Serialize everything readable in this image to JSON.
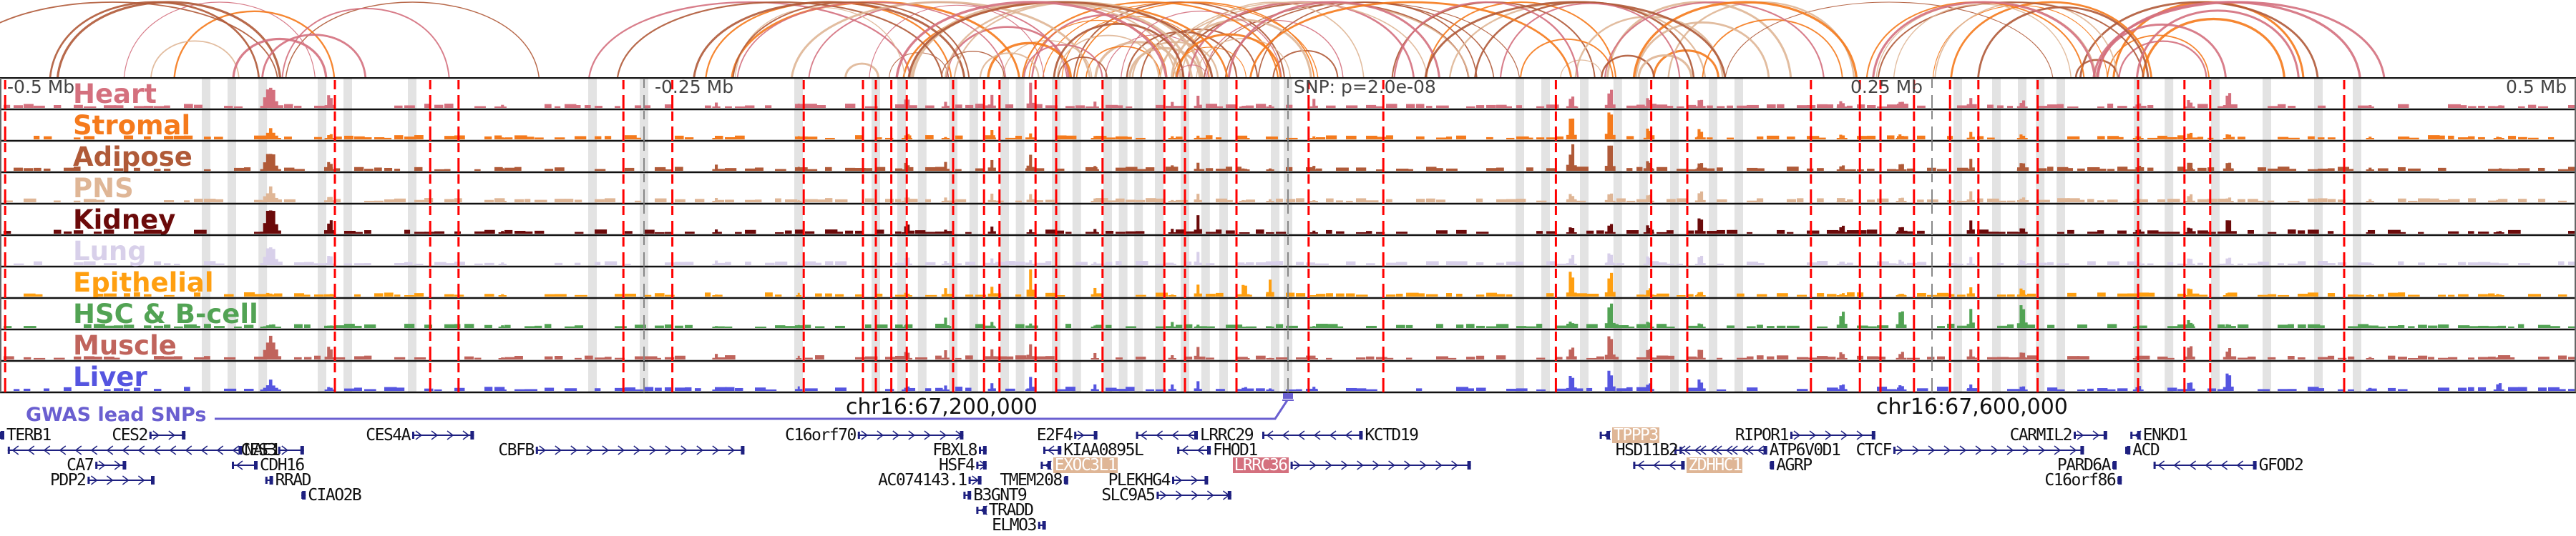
{
  "chart_data": {
    "type": "area",
    "title": "",
    "xlabel": "",
    "ylabel": "",
    "x_range_mb": [
      -0.5,
      0.5
    ],
    "axis_ticks": [
      {
        "pos": -0.5,
        "label": "-0.5 Mb"
      },
      {
        "pos": -0.25,
        "label": "-0.25 Mb"
      },
      {
        "pos": 0.25,
        "label": "0.25 Mb"
      },
      {
        "pos": 0.5,
        "label": "0.5 Mb"
      }
    ],
    "snp_label": "SNP: p=2.0e-08",
    "coordinate_labels": [
      {
        "pos": -0.1,
        "label": "chr16:67,200,000"
      },
      {
        "pos": 0.3,
        "label": "chr16:67,600,000"
      }
    ],
    "gwas_track_label": "GWAS lead SNPs",
    "gwas_snp_pos": 0.0,
    "tracks": [
      {
        "name": "Heart",
        "color": "#d4707e"
      },
      {
        "name": "Stromal",
        "color": "#f57a1c"
      },
      {
        "name": "Adipose",
        "color": "#b05a38"
      },
      {
        "name": "PNS",
        "color": "#dfb696"
      },
      {
        "name": "Kidney",
        "color": "#6b0a0a"
      },
      {
        "name": "Lung",
        "color": "#d8d0ea"
      },
      {
        "name": "Epithelial",
        "color": "#ff9f10"
      },
      {
        "name": "HSC & B-cell",
        "color": "#52a354"
      },
      {
        "name": "Muscle",
        "color": "#c0645c"
      },
      {
        "name": "Liver",
        "color": "#5555e0"
      }
    ],
    "peaks": [
      {
        "pos": -0.395,
        "w": 0.008,
        "h": [
          0.9,
          0.35,
          0.7,
          0.55,
          0.95,
          0.7,
          0.15,
          0.15,
          0.85,
          0.35
        ]
      },
      {
        "pos": -0.372,
        "w": 0.004,
        "h": [
          0.55,
          0.25,
          0.4,
          0.3,
          0.55,
          0.4,
          0.1,
          0.15,
          0.5,
          0.2
        ]
      },
      {
        "pos": -0.305,
        "w": 0.003,
        "h": [
          0.1,
          0.08,
          0.1,
          0.1,
          0.1,
          0.1,
          0.1,
          0.1,
          0.1,
          0.1
        ]
      },
      {
        "pos": -0.222,
        "w": 0.003,
        "h": [
          0.2,
          0.1,
          0.2,
          0.15,
          0.15,
          0.15,
          0.1,
          0.1,
          0.2,
          0.1
        ]
      },
      {
        "pos": -0.19,
        "w": 0.002,
        "h": [
          0.15,
          0.1,
          0.15,
          0.1,
          0.1,
          0.1,
          0.15,
          0.1,
          0.15,
          0.15
        ]
      },
      {
        "pos": -0.148,
        "w": 0.004,
        "h": [
          0.35,
          0.2,
          0.3,
          0.2,
          0.35,
          0.3,
          0.15,
          0.15,
          0.3,
          0.2
        ]
      },
      {
        "pos": -0.133,
        "w": 0.003,
        "h": [
          0.3,
          0.1,
          0.3,
          0.2,
          0.2,
          0.2,
          0.3,
          0.35,
          0.3,
          0.2
        ]
      },
      {
        "pos": -0.115,
        "w": 0.003,
        "h": [
          0.4,
          0.3,
          0.45,
          0.35,
          0.3,
          0.25,
          0.4,
          0.25,
          0.35,
          0.3
        ]
      },
      {
        "pos": -0.1,
        "w": 0.003,
        "h": [
          0.85,
          0.3,
          0.65,
          0.35,
          0.2,
          0.2,
          0.85,
          0.15,
          0.55,
          0.5
        ]
      },
      {
        "pos": -0.075,
        "w": 0.003,
        "h": [
          0.2,
          0.15,
          0.2,
          0.15,
          0.15,
          0.15,
          0.3,
          0.1,
          0.2,
          0.25
        ]
      },
      {
        "pos": -0.045,
        "w": 0.003,
        "h": [
          0.2,
          0.1,
          0.2,
          0.1,
          0.15,
          0.1,
          0.1,
          0.2,
          0.2,
          0.25
        ]
      },
      {
        "pos": -0.035,
        "w": 0.003,
        "h": [
          0.4,
          0.15,
          0.3,
          0.4,
          0.6,
          0.45,
          0.45,
          0.15,
          0.45,
          0.3
        ]
      },
      {
        "pos": -0.017,
        "w": 0.004,
        "h": [
          0.1,
          0.1,
          0.1,
          0.1,
          0.05,
          0.05,
          0.55,
          0.05,
          0.05,
          0.15
        ]
      },
      {
        "pos": -0.007,
        "w": 0.003,
        "h": [
          0.1,
          0.1,
          0.1,
          0.1,
          0.05,
          0.05,
          0.75,
          0.05,
          0.05,
          0.1
        ]
      },
      {
        "pos": 0.01,
        "w": 0.003,
        "h": [
          0.3,
          0.1,
          0.2,
          0.1,
          0.1,
          0.1,
          0.05,
          0.1,
          0.1,
          0.15
        ]
      },
      {
        "pos": 0.11,
        "w": 0.004,
        "h": [
          0.5,
          1.0,
          1.0,
          0.35,
          0.3,
          0.4,
          1.0,
          0.3,
          0.6,
          0.6
        ]
      },
      {
        "pos": 0.125,
        "w": 0.004,
        "h": [
          0.7,
          1.0,
          1.0,
          0.4,
          0.4,
          0.45,
          1.0,
          1.0,
          0.9,
          0.8
        ]
      },
      {
        "pos": 0.14,
        "w": 0.004,
        "h": [
          0.4,
          0.4,
          0.45,
          0.3,
          0.35,
          0.35,
          0.35,
          0.3,
          0.4,
          0.35
        ]
      },
      {
        "pos": 0.16,
        "w": 0.004,
        "h": [
          0.45,
          0.45,
          0.45,
          0.45,
          0.6,
          0.4,
          0.2,
          0.2,
          0.45,
          0.45
        ]
      },
      {
        "pos": 0.215,
        "w": 0.004,
        "h": [
          0.3,
          0.2,
          0.25,
          0.2,
          0.3,
          0.2,
          0.15,
          0.75,
          0.3,
          0.3
        ]
      },
      {
        "pos": 0.238,
        "w": 0.004,
        "h": [
          0.3,
          0.2,
          0.25,
          0.2,
          0.25,
          0.2,
          0.15,
          0.8,
          0.3,
          0.3
        ]
      },
      {
        "pos": 0.265,
        "w": 0.003,
        "h": [
          0.45,
          0.3,
          0.4,
          0.35,
          0.5,
          0.3,
          0.4,
          0.7,
          0.45,
          0.3
        ]
      },
      {
        "pos": 0.285,
        "w": 0.004,
        "h": [
          0.3,
          0.2,
          0.3,
          0.2,
          0.3,
          0.2,
          0.3,
          0.95,
          0.4,
          0.25
        ]
      },
      {
        "pos": 0.33,
        "w": 0.004,
        "h": [
          0.2,
          0.15,
          0.2,
          0.15,
          0.2,
          0.15,
          0.1,
          0.1,
          0.2,
          0.2
        ]
      },
      {
        "pos": 0.35,
        "w": 0.004,
        "h": [
          0.3,
          0.3,
          0.3,
          0.3,
          0.3,
          0.3,
          0.3,
          0.3,
          0.5,
          0.4
        ]
      },
      {
        "pos": 0.365,
        "w": 0.004,
        "h": [
          0.6,
          0.25,
          0.4,
          0.2,
          0.5,
          0.3,
          0.2,
          0.2,
          0.5,
          0.8
        ]
      },
      {
        "pos": 0.42,
        "w": 0.003,
        "h": [
          0.1,
          0.1,
          0.1,
          0.1,
          0.1,
          0.1,
          0.1,
          0.1,
          0.1,
          0.15
        ]
      },
      {
        "pos": 0.47,
        "w": 0.004,
        "h": [
          0.1,
          0.1,
          0.1,
          0.1,
          0.1,
          0.1,
          0.1,
          0.1,
          0.1,
          0.3
        ]
      }
    ],
    "highlight_regions": [
      -0.42,
      -0.41,
      -0.398,
      -0.375,
      -0.365,
      -0.34,
      -0.27,
      -0.25,
      -0.19,
      -0.16,
      -0.15,
      -0.142,
      -0.13,
      -0.122,
      -0.11,
      -0.104,
      -0.09,
      -0.082,
      -0.07,
      -0.064,
      -0.058,
      -0.05,
      -0.04,
      -0.032,
      -0.025,
      -0.005,
      0.0,
      0.09,
      0.1,
      0.115,
      0.128,
      0.138,
      0.15,
      0.165,
      0.175,
      0.26,
      0.275,
      0.285,
      0.292,
      0.3,
      0.33,
      0.342,
      0.36,
      0.38,
      0.4,
      0.415
    ],
    "peak_calls": [
      -0.498,
      -0.37,
      -0.333,
      -0.322,
      -0.258,
      -0.239,
      -0.188,
      -0.165,
      -0.16,
      -0.154,
      -0.148,
      -0.13,
      -0.118,
      -0.112,
      -0.098,
      -0.09,
      -0.072,
      -0.048,
      -0.04,
      -0.02,
      0.008,
      0.037,
      0.104,
      0.141,
      0.155,
      0.203,
      0.222,
      0.23,
      0.243,
      0.257,
      0.268,
      0.291,
      0.33,
      0.348,
      0.358,
      0.41
    ],
    "arc_colors": [
      "#f57a1c",
      "#b05a38",
      "#d4707e",
      "#dfb696"
    ]
  },
  "genes": [
    {
      "name": "TERB1",
      "row": 0,
      "start": -0.5,
      "end": -0.499,
      "strand": "+",
      "label_side": "right"
    },
    {
      "name": "CES2",
      "row": 0,
      "start": -0.442,
      "end": -0.428,
      "strand": "+",
      "label_side": "left"
    },
    {
      "name": "CES4A",
      "row": 0,
      "start": -0.34,
      "end": -0.316,
      "strand": "+",
      "label_side": "left"
    },
    {
      "name": "C16orf70",
      "row": 0,
      "start": -0.167,
      "end": -0.126,
      "strand": "+",
      "label_side": "left"
    },
    {
      "name": "E2F4",
      "row": 0,
      "start": -0.083,
      "end": -0.074,
      "strand": "+",
      "label_side": "left"
    },
    {
      "name": "LRRC29",
      "row": 0,
      "start": -0.059,
      "end": -0.035,
      "strand": "-",
      "label_side": "right"
    },
    {
      "name": "KCTD19",
      "row": 0,
      "start": -0.01,
      "end": 0.029,
      "strand": "-",
      "label_side": "right"
    },
    {
      "name": "TPPP3",
      "row": 0,
      "start": 0.121,
      "end": 0.125,
      "strand": "-",
      "label_side": "right",
      "highlight": "#dfb696"
    },
    {
      "name": "RIPOR1",
      "row": 0,
      "start": 0.195,
      "end": 0.228,
      "strand": "+",
      "label_side": "left"
    },
    {
      "name": "CARMIL2",
      "row": 0,
      "start": 0.305,
      "end": 0.318,
      "strand": "+",
      "label_side": "left"
    },
    {
      "name": "ENKD1",
      "row": 0,
      "start": 0.327,
      "end": 0.331,
      "strand": "-",
      "label_side": "right"
    },
    {
      "name": "NAE1",
      "row": 1,
      "start": -0.497,
      "end": -0.406,
      "strand": "-",
      "label_side": "right"
    },
    {
      "name": "CES3",
      "row": 1,
      "start": -0.392,
      "end": -0.382,
      "strand": "+",
      "label_side": "left"
    },
    {
      "name": "CBFB",
      "row": 1,
      "start": -0.292,
      "end": -0.211,
      "strand": "+",
      "label_side": "left"
    },
    {
      "name": "FBXL8",
      "row": 1,
      "start": -0.12,
      "end": -0.117,
      "strand": "+",
      "label_side": "left"
    },
    {
      "name": "KIAA0895L",
      "row": 1,
      "start": -0.095,
      "end": -0.088,
      "strand": "-",
      "label_side": "right"
    },
    {
      "name": "FHOD1",
      "row": 1,
      "start": -0.043,
      "end": -0.03,
      "strand": "-",
      "label_side": "right"
    },
    {
      "name": "HSD11B2",
      "row": 1,
      "start": 0.152,
      "end": 0.186,
      "strand": "-",
      "label_side": "left"
    },
    {
      "name": "ATP6V0D1",
      "row": 1,
      "start": 0.15,
      "end": 0.186,
      "strand": "-",
      "label_side": "right"
    },
    {
      "name": "CTCF",
      "row": 1,
      "start": 0.235,
      "end": 0.309,
      "strand": "+",
      "label_side": "left"
    },
    {
      "name": "ACD",
      "row": 1,
      "start": 0.325,
      "end": 0.327,
      "strand": "-",
      "label_side": "right"
    },
    {
      "name": "CA7",
      "row": 2,
      "start": -0.463,
      "end": -0.451,
      "strand": "+",
      "label_side": "left"
    },
    {
      "name": "CDH16",
      "row": 2,
      "start": -0.41,
      "end": -0.4,
      "strand": "-",
      "label_side": "right"
    },
    {
      "name": "HSF4",
      "row": 2,
      "start": -0.121,
      "end": -0.117,
      "strand": "+",
      "label_side": "left"
    },
    {
      "name": "EXOC3L1",
      "row": 2,
      "start": -0.096,
      "end": -0.092,
      "strand": "-",
      "label_side": "right",
      "highlight": "#dfb696"
    },
    {
      "name": "LRRC36",
      "row": 2,
      "start": 0.001,
      "end": 0.071,
      "strand": "+",
      "label_side": "left",
      "highlight": "#d4707e"
    },
    {
      "name": "ZDHHC1",
      "row": 2,
      "start": 0.134,
      "end": 0.154,
      "strand": "-",
      "label_side": "right",
      "highlight": "#dfb696"
    },
    {
      "name": "AGRP",
      "row": 2,
      "start": 0.187,
      "end": 0.188,
      "strand": "-",
      "label_side": "right"
    },
    {
      "name": "PARD6A",
      "row": 2,
      "start": 0.32,
      "end": 0.321,
      "strand": "+",
      "label_side": "left"
    },
    {
      "name": "GFOD2",
      "row": 2,
      "start": 0.336,
      "end": 0.376,
      "strand": "-",
      "label_side": "right"
    },
    {
      "name": "PDP2",
      "row": 3,
      "start": -0.466,
      "end": -0.44,
      "strand": "+",
      "label_side": "left"
    },
    {
      "name": "RRAD",
      "row": 3,
      "start": -0.397,
      "end": -0.394,
      "strand": "-",
      "label_side": "right"
    },
    {
      "name": "AC074143.1",
      "row": 3,
      "start": -0.124,
      "end": -0.119,
      "strand": "+",
      "label_side": "left"
    },
    {
      "name": "TMEM208",
      "row": 3,
      "start": -0.087,
      "end": -0.086,
      "strand": "+",
      "label_side": "left"
    },
    {
      "name": "PLEKHG4",
      "row": 3,
      "start": -0.045,
      "end": -0.031,
      "strand": "+",
      "label_side": "left"
    },
    {
      "name": "C16orf86",
      "row": 3,
      "start": 0.322,
      "end": 0.323,
      "strand": "+",
      "label_side": "left"
    },
    {
      "name": "CIAO2B",
      "row": 4,
      "start": -0.383,
      "end": -0.382,
      "strand": "-",
      "label_side": "right"
    },
    {
      "name": "B3GNT9",
      "row": 4,
      "start": -0.126,
      "end": -0.123,
      "strand": "-",
      "label_side": "right"
    },
    {
      "name": "SLC9A5",
      "row": 4,
      "start": -0.051,
      "end": -0.022,
      "strand": "+",
      "label_side": "left"
    },
    {
      "name": "TRADD",
      "row": 5,
      "start": -0.121,
      "end": -0.117,
      "strand": "-",
      "label_side": "right"
    },
    {
      "name": "ELMO3",
      "row": 6,
      "start": -0.097,
      "end": -0.094,
      "strand": "+",
      "label_side": "left"
    }
  ]
}
